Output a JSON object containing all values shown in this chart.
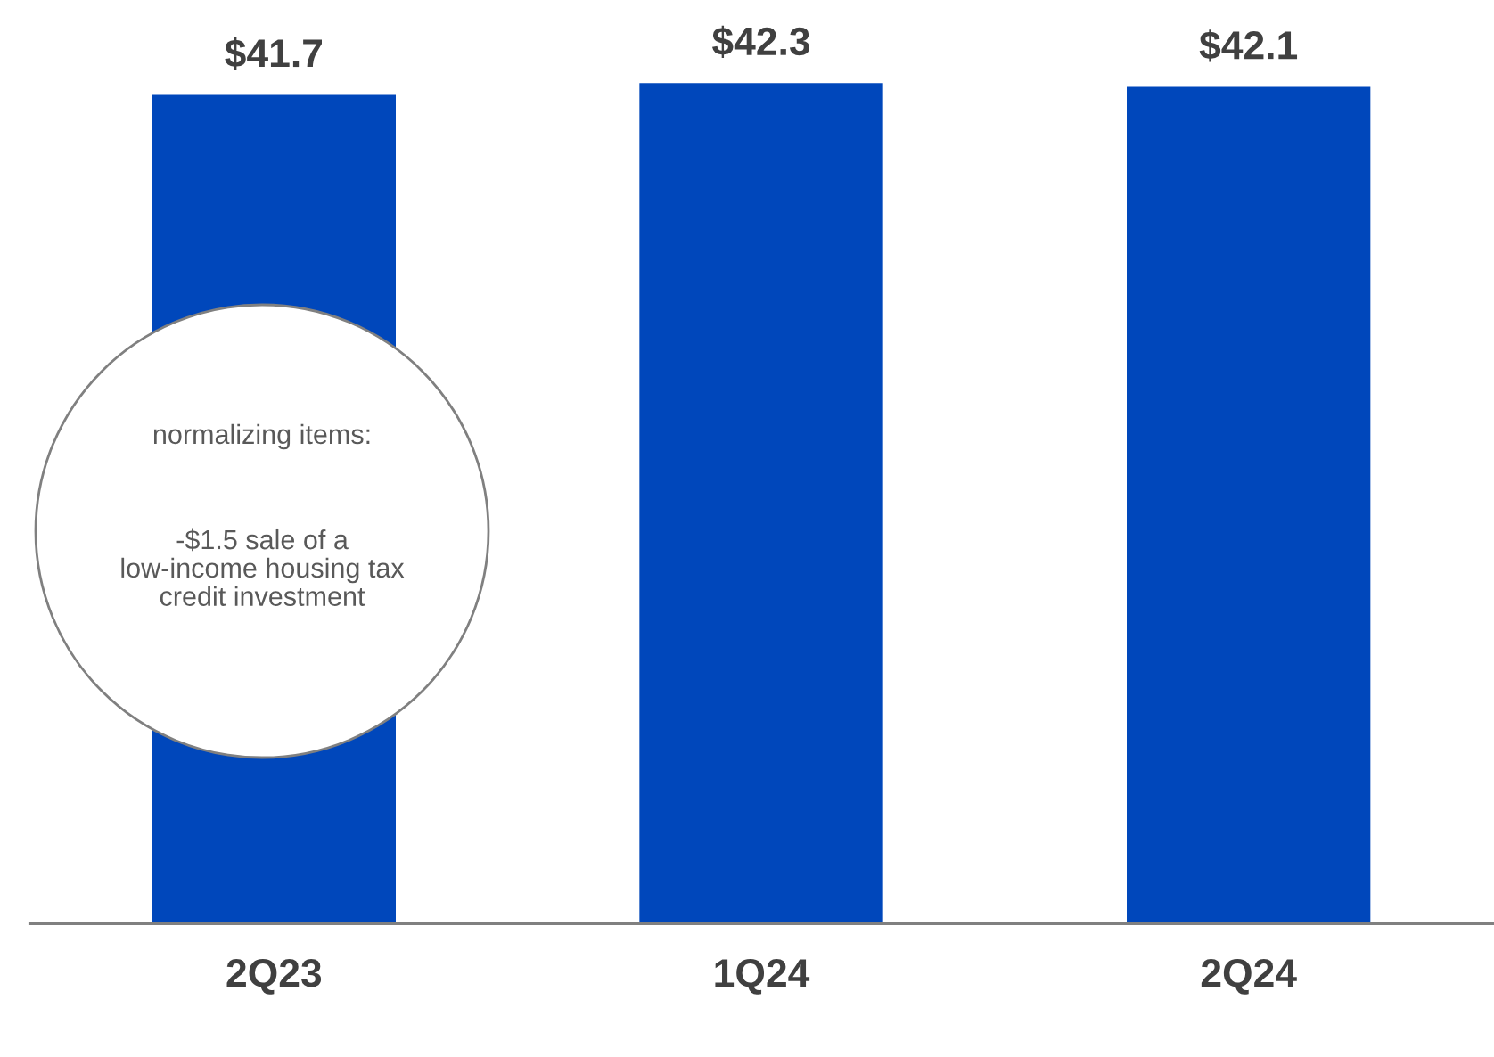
{
  "chart_data": {
    "type": "bar",
    "categories": [
      "2Q23",
      "1Q24",
      "2Q24"
    ],
    "values": [
      41.7,
      42.3,
      42.1
    ],
    "value_labels": [
      "$41.7",
      "$42.3",
      "$42.1"
    ],
    "color": "#0047bb",
    "grid": false,
    "legend": false,
    "tick_labels": "x",
    "annotations": [
      "normalizing items:",
      "-$1.5 sale of a low-income housing tax credit investment"
    ]
  }
}
